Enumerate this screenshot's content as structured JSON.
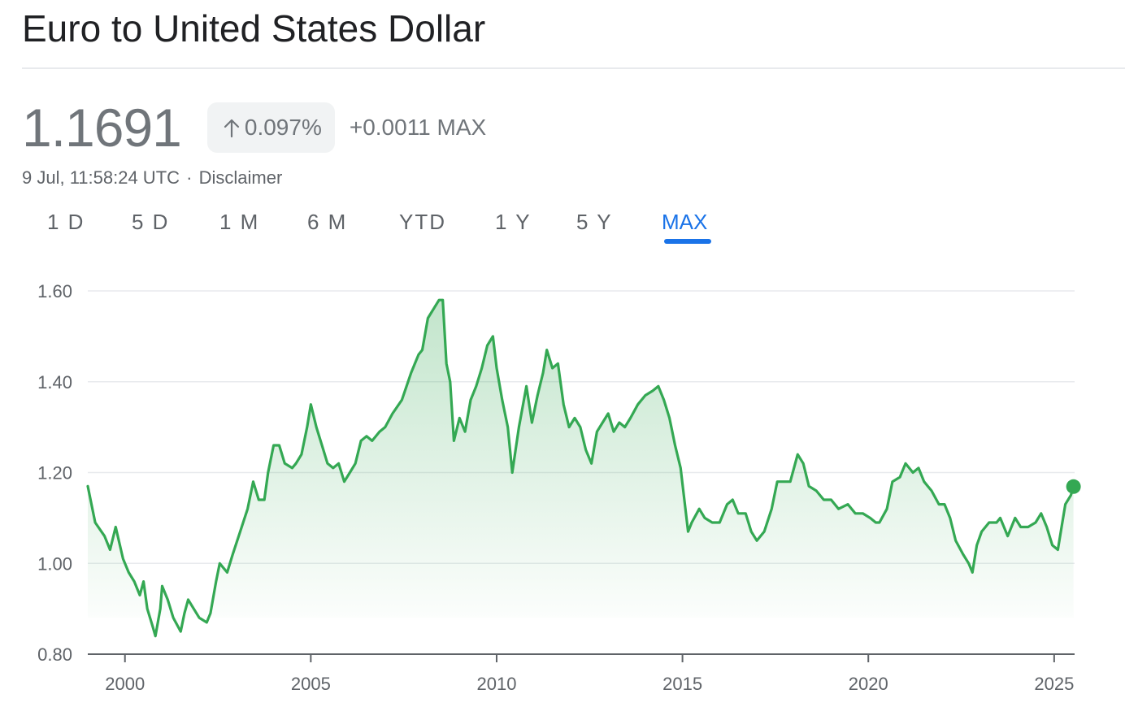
{
  "header": {
    "title": "Euro to United States Dollar"
  },
  "quote": {
    "price": "1.1691",
    "change_percent": "0.097%",
    "change_direction": "up",
    "change_absolute": "+0.0011 MAX",
    "timestamp": "9 Jul, 11:58:24 UTC",
    "separator": "·",
    "disclaimer": "Disclaimer"
  },
  "tabs": [
    {
      "label": "1 D"
    },
    {
      "label": "5 D"
    },
    {
      "label": "1 M"
    },
    {
      "label": "6 M"
    },
    {
      "label": "YTD"
    },
    {
      "label": "1 Y"
    },
    {
      "label": "5 Y"
    },
    {
      "label": "MAX",
      "active": true
    }
  ],
  "colors": {
    "line": "#34a853",
    "active_tab": "#1a73e8",
    "muted_text": "#70757a",
    "grid": "#e8eaed"
  },
  "icons": {
    "change_arrow": "arrow-up-icon"
  },
  "chart_data": {
    "type": "area",
    "x_unit": "year",
    "xlim": [
      1999.0,
      2025.55
    ],
    "ylim": [
      0.8,
      1.6
    ],
    "x_ticks": [
      2000,
      2005,
      2010,
      2015,
      2020,
      2025
    ],
    "x_tick_labels": [
      "2000",
      "2005",
      "2010",
      "2015",
      "2020",
      "2025"
    ],
    "y_ticks": [
      0.8,
      1.0,
      1.2,
      1.4,
      1.6
    ],
    "y_tick_labels": [
      "0.80",
      "1.00",
      "1.20",
      "1.40",
      "1.60"
    ],
    "grid": "horizontal",
    "series": [
      {
        "points": [
          [
            1999.0,
            1.17
          ],
          [
            1999.2,
            1.09
          ],
          [
            1999.45,
            1.06
          ],
          [
            1999.6,
            1.03
          ],
          [
            1999.75,
            1.08
          ],
          [
            1999.95,
            1.01
          ],
          [
            2000.1,
            0.98
          ],
          [
            2000.25,
            0.96
          ],
          [
            2000.4,
            0.93
          ],
          [
            2000.5,
            0.96
          ],
          [
            2000.6,
            0.9
          ],
          [
            2000.75,
            0.86
          ],
          [
            2000.82,
            0.84
          ],
          [
            2000.95,
            0.9
          ],
          [
            2001.0,
            0.95
          ],
          [
            2001.15,
            0.92
          ],
          [
            2001.3,
            0.88
          ],
          [
            2001.5,
            0.85
          ],
          [
            2001.6,
            0.89
          ],
          [
            2001.7,
            0.92
          ],
          [
            2001.85,
            0.9
          ],
          [
            2002.0,
            0.88
          ],
          [
            2002.2,
            0.87
          ],
          [
            2002.3,
            0.89
          ],
          [
            2002.45,
            0.96
          ],
          [
            2002.55,
            1.0
          ],
          [
            2002.75,
            0.98
          ],
          [
            2002.9,
            1.02
          ],
          [
            2003.1,
            1.07
          ],
          [
            2003.3,
            1.12
          ],
          [
            2003.45,
            1.18
          ],
          [
            2003.6,
            1.14
          ],
          [
            2003.75,
            1.14
          ],
          [
            2003.85,
            1.2
          ],
          [
            2004.0,
            1.26
          ],
          [
            2004.15,
            1.26
          ],
          [
            2004.3,
            1.22
          ],
          [
            2004.5,
            1.21
          ],
          [
            2004.6,
            1.22
          ],
          [
            2004.75,
            1.24
          ],
          [
            2004.9,
            1.3
          ],
          [
            2005.0,
            1.35
          ],
          [
            2005.15,
            1.3
          ],
          [
            2005.3,
            1.26
          ],
          [
            2005.45,
            1.22
          ],
          [
            2005.6,
            1.21
          ],
          [
            2005.75,
            1.22
          ],
          [
            2005.9,
            1.18
          ],
          [
            2006.05,
            1.2
          ],
          [
            2006.2,
            1.22
          ],
          [
            2006.35,
            1.27
          ],
          [
            2006.5,
            1.28
          ],
          [
            2006.65,
            1.27
          ],
          [
            2006.85,
            1.29
          ],
          [
            2007.0,
            1.3
          ],
          [
            2007.2,
            1.33
          ],
          [
            2007.45,
            1.36
          ],
          [
            2007.7,
            1.42
          ],
          [
            2007.9,
            1.46
          ],
          [
            2008.0,
            1.47
          ],
          [
            2008.15,
            1.54
          ],
          [
            2008.3,
            1.56
          ],
          [
            2008.45,
            1.58
          ],
          [
            2008.55,
            1.58
          ],
          [
            2008.65,
            1.44
          ],
          [
            2008.75,
            1.4
          ],
          [
            2008.85,
            1.27
          ],
          [
            2009.0,
            1.32
          ],
          [
            2009.15,
            1.29
          ],
          [
            2009.3,
            1.36
          ],
          [
            2009.45,
            1.39
          ],
          [
            2009.6,
            1.43
          ],
          [
            2009.75,
            1.48
          ],
          [
            2009.9,
            1.5
          ],
          [
            2010.0,
            1.43
          ],
          [
            2010.15,
            1.36
          ],
          [
            2010.3,
            1.3
          ],
          [
            2010.42,
            1.2
          ],
          [
            2010.6,
            1.3
          ],
          [
            2010.8,
            1.39
          ],
          [
            2010.95,
            1.31
          ],
          [
            2011.1,
            1.37
          ],
          [
            2011.25,
            1.42
          ],
          [
            2011.35,
            1.47
          ],
          [
            2011.5,
            1.43
          ],
          [
            2011.65,
            1.44
          ],
          [
            2011.8,
            1.35
          ],
          [
            2011.95,
            1.3
          ],
          [
            2012.1,
            1.32
          ],
          [
            2012.25,
            1.3
          ],
          [
            2012.4,
            1.25
          ],
          [
            2012.55,
            1.22
          ],
          [
            2012.7,
            1.29
          ],
          [
            2012.85,
            1.31
          ],
          [
            2013.0,
            1.33
          ],
          [
            2013.15,
            1.29
          ],
          [
            2013.3,
            1.31
          ],
          [
            2013.45,
            1.3
          ],
          [
            2013.6,
            1.32
          ],
          [
            2013.8,
            1.35
          ],
          [
            2014.0,
            1.37
          ],
          [
            2014.2,
            1.38
          ],
          [
            2014.35,
            1.39
          ],
          [
            2014.5,
            1.36
          ],
          [
            2014.65,
            1.32
          ],
          [
            2014.8,
            1.26
          ],
          [
            2014.95,
            1.21
          ],
          [
            2015.05,
            1.14
          ],
          [
            2015.15,
            1.07
          ],
          [
            2015.25,
            1.09
          ],
          [
            2015.45,
            1.12
          ],
          [
            2015.6,
            1.1
          ],
          [
            2015.8,
            1.09
          ],
          [
            2016.0,
            1.09
          ],
          [
            2016.2,
            1.13
          ],
          [
            2016.35,
            1.14
          ],
          [
            2016.5,
            1.11
          ],
          [
            2016.7,
            1.11
          ],
          [
            2016.85,
            1.07
          ],
          [
            2017.0,
            1.05
          ],
          [
            2017.2,
            1.07
          ],
          [
            2017.4,
            1.12
          ],
          [
            2017.55,
            1.18
          ],
          [
            2017.7,
            1.18
          ],
          [
            2017.9,
            1.18
          ],
          [
            2018.1,
            1.24
          ],
          [
            2018.25,
            1.22
          ],
          [
            2018.4,
            1.17
          ],
          [
            2018.6,
            1.16
          ],
          [
            2018.8,
            1.14
          ],
          [
            2019.0,
            1.14
          ],
          [
            2019.2,
            1.12
          ],
          [
            2019.45,
            1.13
          ],
          [
            2019.65,
            1.11
          ],
          [
            2019.85,
            1.11
          ],
          [
            2020.05,
            1.1
          ],
          [
            2020.2,
            1.09
          ],
          [
            2020.3,
            1.09
          ],
          [
            2020.5,
            1.12
          ],
          [
            2020.65,
            1.18
          ],
          [
            2020.85,
            1.19
          ],
          [
            2021.0,
            1.22
          ],
          [
            2021.2,
            1.2
          ],
          [
            2021.35,
            1.21
          ],
          [
            2021.5,
            1.18
          ],
          [
            2021.7,
            1.16
          ],
          [
            2021.9,
            1.13
          ],
          [
            2022.05,
            1.13
          ],
          [
            2022.2,
            1.1
          ],
          [
            2022.35,
            1.05
          ],
          [
            2022.55,
            1.02
          ],
          [
            2022.7,
            1.0
          ],
          [
            2022.8,
            0.98
          ],
          [
            2022.92,
            1.04
          ],
          [
            2023.05,
            1.07
          ],
          [
            2023.25,
            1.09
          ],
          [
            2023.45,
            1.09
          ],
          [
            2023.55,
            1.1
          ],
          [
            2023.75,
            1.06
          ],
          [
            2023.95,
            1.1
          ],
          [
            2024.1,
            1.08
          ],
          [
            2024.3,
            1.08
          ],
          [
            2024.5,
            1.09
          ],
          [
            2024.65,
            1.11
          ],
          [
            2024.8,
            1.08
          ],
          [
            2024.95,
            1.04
          ],
          [
            2025.1,
            1.03
          ],
          [
            2025.2,
            1.08
          ],
          [
            2025.3,
            1.13
          ],
          [
            2025.45,
            1.15
          ],
          [
            2025.52,
            1.1691
          ]
        ]
      }
    ]
  }
}
